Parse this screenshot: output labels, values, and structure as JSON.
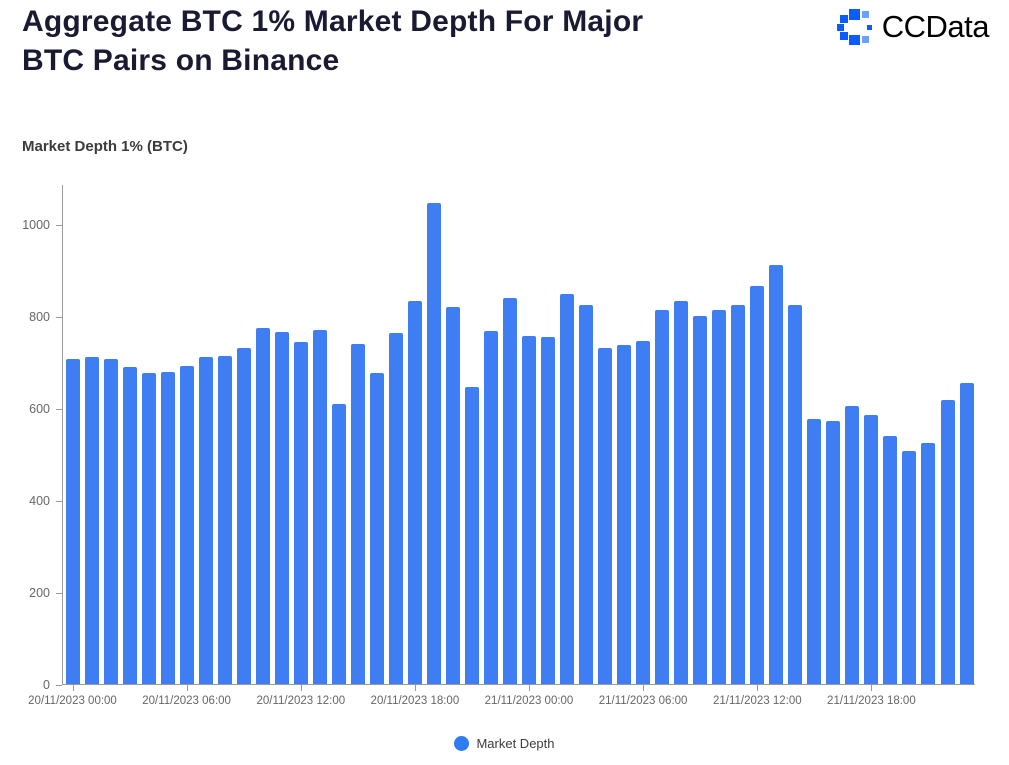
{
  "header": {
    "title_line1": "Aggregate BTC 1% Market Depth For Major",
    "title_line2": "BTC Pairs on Binance",
    "logo_text": "CCData"
  },
  "chart_data": {
    "type": "bar",
    "title": "Aggregate BTC 1% Market Depth For Major BTC Pairs on Binance",
    "ylabel": "Market Depth 1% (BTC)",
    "series_name": "Market Depth",
    "bar_color": "#3e7ef2",
    "legend_color": "#2f7bf2",
    "ylim": [
      0,
      1087
    ],
    "yticks": [
      0,
      200,
      400,
      600,
      800,
      1000
    ],
    "x_tick_every": 6,
    "x_tick_labels": [
      "20/11/2023 00:00",
      "20/11/2023 06:00",
      "20/11/2023 12:00",
      "20/11/2023 18:00",
      "21/11/2023 00:00",
      "21/11/2023 06:00",
      "21/11/2023 12:00",
      "21/11/2023 18:00"
    ],
    "values": [
      707,
      711,
      706,
      690,
      676,
      679,
      691,
      712,
      713,
      731,
      774,
      765,
      744,
      769,
      608,
      739,
      676,
      763,
      832,
      1046,
      819,
      645,
      768,
      839,
      757,
      754,
      849,
      824,
      731,
      737,
      746,
      813,
      832,
      801,
      813,
      823,
      866,
      910,
      824,
      577,
      571,
      605,
      585,
      539,
      507,
      524,
      618,
      654
    ],
    "legend": [
      "Market Depth"
    ],
    "grid": false,
    "legend_position": "bottom"
  }
}
